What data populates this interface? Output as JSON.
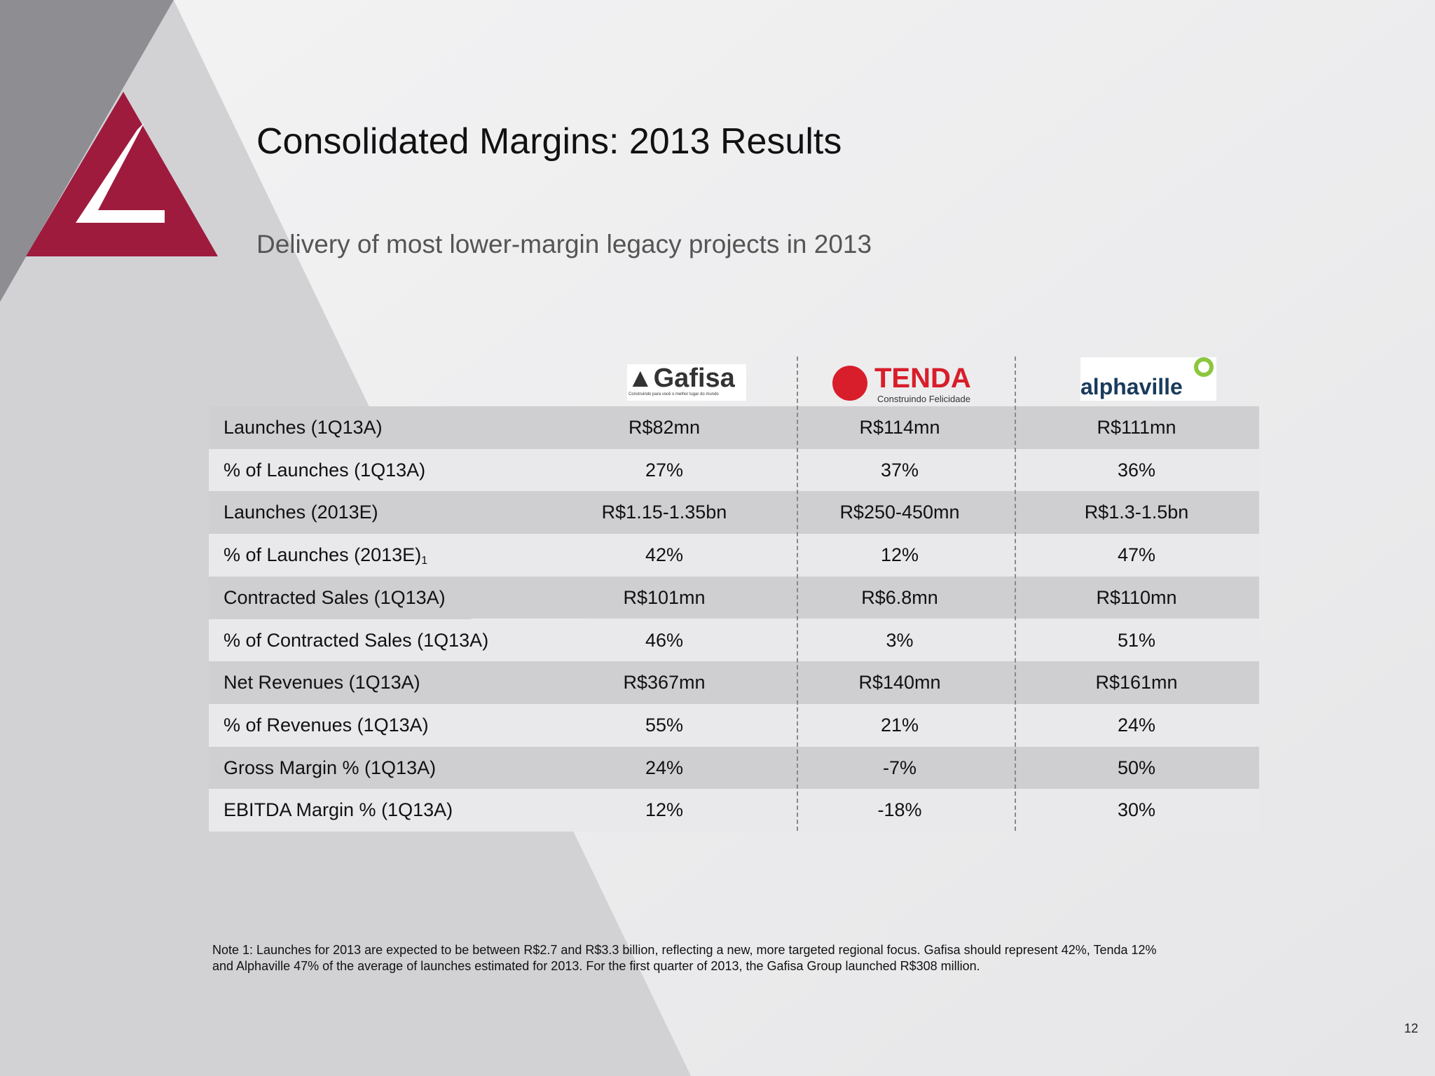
{
  "header": {
    "title": "Consolidated Margins: 2013 Results",
    "subtitle": "Delivery of most lower-margin legacy projects in 2013"
  },
  "table": {
    "columns": [
      {
        "name": "Gafisa",
        "tagline": "Construindo para você o melhor lugar do mundo"
      },
      {
        "name": "TENDA",
        "tagline": "Construindo Felicidade"
      },
      {
        "name": "alphaville"
      }
    ],
    "rows": [
      {
        "label": "Launches (1Q13A)",
        "values": [
          "R$82mn",
          "R$114mn",
          "R$111mn"
        ]
      },
      {
        "label": "% of Launches (1Q13A)",
        "values": [
          "27%",
          "37%",
          "36%"
        ]
      },
      {
        "label": "Launches (2013E)",
        "values": [
          "R$1.15-1.35bn",
          "R$250-450mn",
          "R$1.3-1.5bn"
        ]
      },
      {
        "label": "% of Launches (2013E)",
        "note_ref": "1",
        "values": [
          "42%",
          "12%",
          "47%"
        ]
      },
      {
        "label": "Contracted Sales (1Q13A)",
        "values": [
          "R$101mn",
          "R$6.8mn",
          "R$110mn"
        ]
      },
      {
        "label": "% of Contracted Sales (1Q13A)",
        "values": [
          "46%",
          "3%",
          "51%"
        ]
      },
      {
        "label": "Net Revenues (1Q13A)",
        "values": [
          "R$367mn",
          "R$140mn",
          "R$161mn"
        ]
      },
      {
        "label": "% of Revenues (1Q13A)",
        "values": [
          "55%",
          "21%",
          "24%"
        ]
      },
      {
        "label": "Gross Margin % (1Q13A)",
        "values": [
          "24%",
          "-7%",
          "50%"
        ]
      },
      {
        "label": "EBITDA Margin % (1Q13A)",
        "values": [
          "12%",
          "-18%",
          "30%"
        ]
      }
    ]
  },
  "note": {
    "lines": [
      "Note 1: Launches for 2013 are expected to be between R$2.7 and R$3.3 billion, reflecting a new, more targeted regional focus. Gafisa should represent 42%, Tenda 12%",
      "and Alphaville 47% of  the average of launches estimated for 2013. For the first quarter of 2013, the Gafisa Group launched R$308 million."
    ]
  },
  "page_number": "12"
}
